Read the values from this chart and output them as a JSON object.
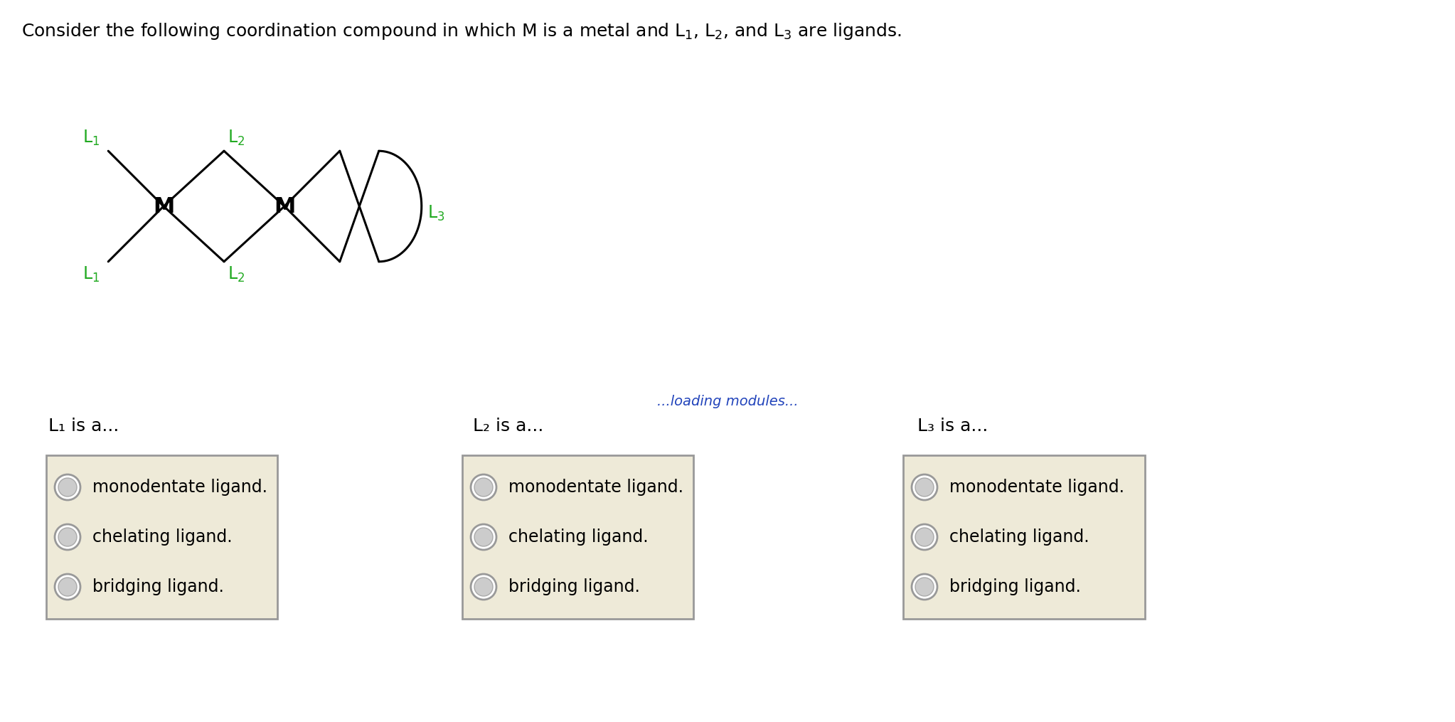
{
  "background_color": "#ffffff",
  "green_color": "#22aa22",
  "black_color": "#000000",
  "loading_color": "#2244bb",
  "box_bg": "#eeead8",
  "box_border": "#999999",
  "loading_text": "...loading modules...",
  "options": [
    "monodentate ligand.",
    "chelating ligand.",
    "bridging ligand."
  ],
  "col_labels": [
    "L₁ is a...",
    "L₂ is a...",
    "L₃ is a..."
  ],
  "figsize": [
    20.46,
    10.15
  ],
  "dpi": 100
}
